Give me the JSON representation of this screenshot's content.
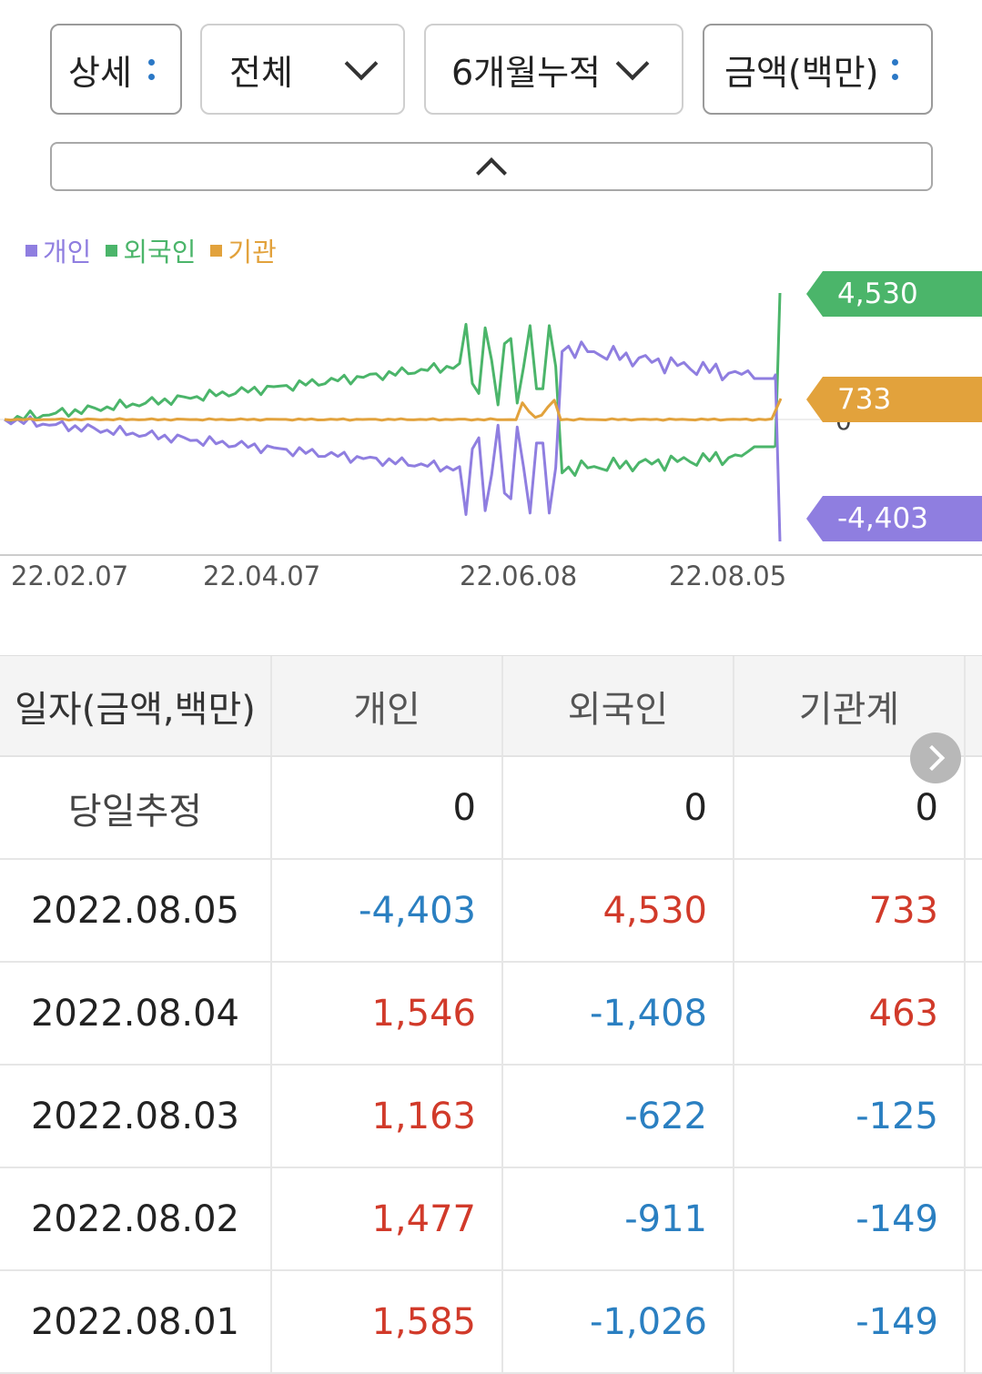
{
  "filters": {
    "detail": {
      "label": "상세",
      "icon": "kebab-icon"
    },
    "scope": {
      "label": "전체",
      "icon": "chevron-down-icon"
    },
    "period": {
      "label": "6개월누적",
      "icon": "chevron-down-icon"
    },
    "unit": {
      "label": "금액(백만)",
      "icon": "kebab-icon"
    },
    "collapse_icon": "chevron-up-icon"
  },
  "legend": [
    {
      "name": "개인",
      "color": "#8f7ee0"
    },
    {
      "name": "외국인",
      "color": "#4bb56a"
    },
    {
      "name": "기관",
      "color": "#e2a23c"
    }
  ],
  "value_tags": {
    "foreign": "4,530",
    "institution": "733",
    "individual": "-4,403"
  },
  "zero_label": "0",
  "x_axis_labels": [
    "22.02.07",
    "22.04.07",
    "22.06.08",
    "22.08.05"
  ],
  "chart_data": {
    "type": "line",
    "x_ticks": [
      "22.02.07",
      "22.04.07",
      "22.06.08",
      "22.08.05"
    ],
    "series": [
      {
        "name": "개인",
        "color": "#8f7ee0",
        "last_value": -4403
      },
      {
        "name": "외국인",
        "color": "#4bb56a",
        "last_value": 4530
      },
      {
        "name": "기관",
        "color": "#e2a23c",
        "last_value": 733
      }
    ]
  },
  "table": {
    "headers": [
      "일자(금액,백만)",
      "개인",
      "외국인",
      "기관계"
    ],
    "rows": [
      {
        "date": "당일추정",
        "individual": "0",
        "foreign": "0",
        "institution": "0"
      },
      {
        "date": "2022.08.05",
        "individual": "-4,403",
        "foreign": "4,530",
        "institution": "733"
      },
      {
        "date": "2022.08.04",
        "individual": "1,546",
        "foreign": "-1,408",
        "institution": "463"
      },
      {
        "date": "2022.08.03",
        "individual": "1,163",
        "foreign": "-622",
        "institution": "-125"
      },
      {
        "date": "2022.08.02",
        "individual": "1,477",
        "foreign": "-911",
        "institution": "-149"
      },
      {
        "date": "2022.08.01",
        "individual": "1,585",
        "foreign": "-1,026",
        "institution": "-149"
      }
    ],
    "scroll_icon": "chevron-right-icon"
  }
}
